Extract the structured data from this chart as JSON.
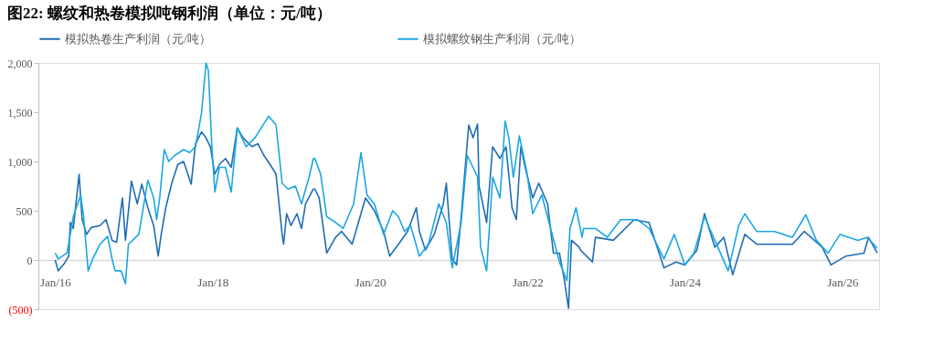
{
  "chart_data": {
    "type": "line",
    "title": "图22:  螺纹和热卷模拟吨钢利润（单位：元/吨）",
    "xlim": [
      "2015-10-15",
      "2026-06-20"
    ],
    "xticks": [
      {
        "value": "2016-01-01",
        "label": "Jan/16"
      },
      {
        "value": "2018-01-01",
        "label": "Jan/18"
      },
      {
        "value": "2020-01-01",
        "label": "Jan/20"
      },
      {
        "value": "2022-01-01",
        "label": "Jan/22"
      },
      {
        "value": "2024-01-01",
        "label": "Jan/24"
      },
      {
        "value": "2026-01-01",
        "label": "Jan/26"
      }
    ],
    "ylim": [
      -500,
      2000
    ],
    "yticks": [
      {
        "value": -500,
        "label": "(500)"
      },
      {
        "value": 0,
        "label": "0"
      },
      {
        "value": 500,
        "label": "500"
      },
      {
        "value": 1000,
        "label": "1,000"
      },
      {
        "value": 1500,
        "label": "1,500"
      },
      {
        "value": 2000,
        "label": "2,000"
      }
    ],
    "grid": false,
    "legend": "top",
    "marker": "none",
    "line_style": "solid",
    "series": [
      {
        "name": "模拟热卷生产利润（元/吨）",
        "color": "#1f6db5",
        "x": [
          "2016-01-01",
          "2016-01-15",
          "2016-02-11",
          "2016-03-04",
          "2016-03-11",
          "2016-03-25",
          "2016-04-21",
          "2016-05-05",
          "2016-05-26",
          "2016-06-16",
          "2016-07-27",
          "2016-08-24",
          "2016-09-21",
          "2016-10-12",
          "2016-10-26",
          "2016-11-08",
          "2016-11-22",
          "2016-12-20",
          "2017-01-16",
          "2017-02-06",
          "2017-03-06",
          "2017-04-02",
          "2017-04-23",
          "2017-05-07",
          "2017-05-28",
          "2017-06-25",
          "2017-07-23",
          "2017-08-19",
          "2017-09-23",
          "2017-10-13",
          "2017-11-10",
          "2017-12-01",
          "2017-12-21",
          "2018-01-11",
          "2018-02-01",
          "2018-03-01",
          "2018-03-28",
          "2018-04-25",
          "2018-05-22",
          "2018-07-02",
          "2018-07-30",
          "2018-08-27",
          "2018-09-24",
          "2018-10-22",
          "2018-11-19",
          "2018-11-26",
          "2018-12-10",
          "2018-12-30",
          "2019-01-27",
          "2019-02-17",
          "2019-03-08",
          "2019-04-13",
          "2019-04-20",
          "2019-05-10",
          "2019-06-14",
          "2019-07-25",
          "2019-08-22",
          "2019-10-10",
          "2019-12-11",
          "2020-01-21",
          "2020-03-04",
          "2020-04-01",
          "2020-05-12",
          "2020-06-23",
          "2020-08-03",
          "2020-08-17",
          "2020-09-14",
          "2020-10-25",
          "2020-12-06",
          "2020-12-20",
          "2021-01-16",
          "2021-02-06",
          "2021-02-27",
          "2021-04-03",
          "2021-04-23",
          "2021-05-14",
          "2021-05-21",
          "2021-06-25",
          "2021-07-23",
          "2021-08-26",
          "2021-09-23",
          "2021-10-21",
          "2021-11-10",
          "2021-12-01",
          "2021-12-21",
          "2022-01-25",
          "2022-02-22",
          "2022-04-04",
          "2022-05-01",
          "2022-05-29",
          "2022-06-19",
          "2022-07-10",
          "2022-07-24",
          "2022-08-28",
          "2022-09-04",
          "2022-10-29",
          "2022-11-12",
          "2023-02-03",
          "2023-05-11",
          "2023-07-19",
          "2023-09-26",
          "2023-11-21",
          "2024-01-01",
          "2024-02-26",
          "2024-04-01",
          "2024-05-19",
          "2024-06-30",
          "2024-08-10",
          "2024-10-05",
          "2024-11-29",
          "2025-02-20",
          "2025-05-14",
          "2025-07-08",
          "2025-09-29",
          "2025-11-09",
          "2026-01-18",
          "2026-04-11",
          "2026-05-02",
          "2026-06-12"
        ],
        "values": [
          0,
          -110,
          -40,
          40,
          380,
          320,
          870,
          410,
          260,
          330,
          350,
          410,
          200,
          180,
          410,
          630,
          200,
          800,
          570,
          770,
          530,
          350,
          40,
          260,
          530,
          780,
          970,
          1000,
          770,
          1180,
          1300,
          1240,
          1150,
          870,
          970,
          1030,
          940,
          1340,
          1240,
          1150,
          1180,
          1060,
          970,
          870,
          260,
          160,
          470,
          350,
          470,
          320,
          570,
          720,
          720,
          630,
          70,
          230,
          290,
          160,
          630,
          500,
          290,
          40,
          160,
          290,
          530,
          290,
          100,
          260,
          570,
          780,
          10,
          -50,
          440,
          1370,
          1240,
          1380,
          750,
          380,
          1150,
          1030,
          1150,
          530,
          410,
          1150,
          940,
          630,
          780,
          570,
          70,
          70,
          -180,
          -490,
          200,
          130,
          100,
          -20,
          230,
          200,
          410,
          380,
          -80,
          -20,
          -50,
          100,
          470,
          130,
          230,
          -150,
          260,
          160,
          160,
          160,
          290,
          130,
          -50,
          40,
          70,
          230,
          70
        ]
      },
      {
        "name": "模拟螺纹钢生产利润（元/吨）",
        "color": "#1aa7e2",
        "x": [
          "2016-01-01",
          "2016-01-15",
          "2016-02-25",
          "2016-03-25",
          "2016-04-28",
          "2016-05-12",
          "2016-06-02",
          "2016-06-23",
          "2016-07-27",
          "2016-08-31",
          "2016-09-21",
          "2016-10-05",
          "2016-11-02",
          "2016-11-22",
          "2016-12-06",
          "2017-01-23",
          "2017-03-06",
          "2017-04-02",
          "2017-04-16",
          "2017-04-30",
          "2017-05-21",
          "2017-06-11",
          "2017-07-08",
          "2017-08-19",
          "2017-09-16",
          "2017-10-13",
          "2017-11-10",
          "2017-12-01",
          "2017-12-12",
          "2017-12-28",
          "2018-01-11",
          "2018-02-01",
          "2018-03-01",
          "2018-03-28",
          "2018-04-25",
          "2018-06-05",
          "2018-07-16",
          "2018-09-17",
          "2018-10-22",
          "2018-11-19",
          "2018-12-16",
          "2019-01-20",
          "2019-02-17",
          "2019-03-24",
          "2019-04-13",
          "2019-04-20",
          "2019-05-17",
          "2019-06-14",
          "2019-07-25",
          "2019-08-29",
          "2019-10-17",
          "2019-11-20",
          "2019-12-18",
          "2020-01-21",
          "2020-03-04",
          "2020-04-15",
          "2020-05-12",
          "2020-06-09",
          "2020-07-07",
          "2020-08-17",
          "2020-09-28",
          "2020-11-15",
          "2020-12-20",
          "2021-01-16",
          "2021-02-27",
          "2021-03-27",
          "2021-04-23",
          "2021-05-14",
          "2021-05-28",
          "2021-06-25",
          "2021-07-23",
          "2021-08-26",
          "2021-09-19",
          "2021-10-06",
          "2021-10-27",
          "2021-11-24",
          "2021-12-28",
          "2022-01-25",
          "2022-03-08",
          "2022-04-18",
          "2022-05-29",
          "2022-07-03",
          "2022-07-17",
          "2022-08-14",
          "2022-09-11",
          "2022-09-18",
          "2022-11-12",
          "2023-01-06",
          "2023-03-09",
          "2023-05-24",
          "2023-07-19",
          "2023-09-26",
          "2023-11-13",
          "2024-01-01",
          "2024-02-12",
          "2024-04-01",
          "2024-05-19",
          "2024-07-20",
          "2024-09-07",
          "2024-10-05",
          "2024-11-29",
          "2025-02-20",
          "2025-05-14",
          "2025-07-15",
          "2025-09-02",
          "2025-10-27",
          "2025-12-21",
          "2026-03-14",
          "2026-04-25",
          "2026-06-12"
        ],
        "values": [
          70,
          10,
          70,
          440,
          660,
          440,
          -110,
          10,
          160,
          240,
          10,
          -110,
          -110,
          -240,
          160,
          260,
          810,
          630,
          410,
          630,
          1120,
          1000,
          1060,
          1120,
          1090,
          1150,
          1490,
          2000,
          1920,
          1150,
          690,
          940,
          940,
          690,
          1340,
          1150,
          1240,
          1460,
          1370,
          780,
          720,
          750,
          570,
          840,
          1030,
          1030,
          870,
          440,
          380,
          320,
          570,
          1090,
          660,
          570,
          260,
          500,
          440,
          290,
          350,
          40,
          160,
          570,
          380,
          -80,
          380,
          1060,
          940,
          840,
          130,
          -110,
          840,
          630,
          1410,
          1240,
          840,
          1260,
          900,
          470,
          660,
          320,
          -20,
          -210,
          320,
          530,
          230,
          320,
          320,
          230,
          410,
          410,
          320,
          10,
          260,
          -50,
          70,
          440,
          200,
          -110,
          350,
          470,
          290,
          290,
          230,
          460,
          200,
          70,
          260,
          200,
          230,
          120
        ]
      }
    ]
  }
}
